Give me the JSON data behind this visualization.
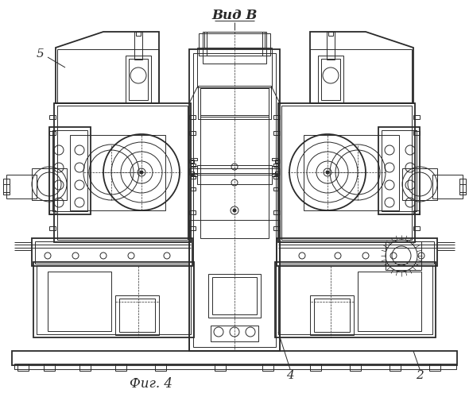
{
  "bg_color": "#ffffff",
  "line_color": "#2a2a2a",
  "lw": 0.7,
  "tlw": 1.3,
  "title_top": "Вид В",
  "title_bottom": "Фиг. 4",
  "label_5": [
    52,
    420
  ],
  "label_4": [
    365,
    32
  ],
  "label_2": [
    530,
    32
  ]
}
